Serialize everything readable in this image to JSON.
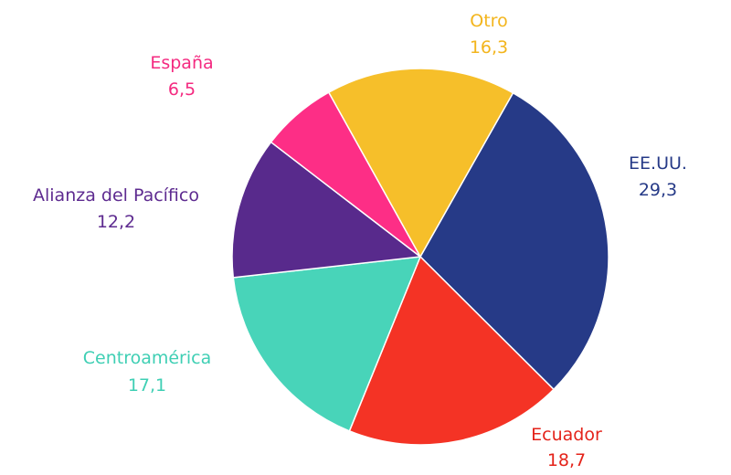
{
  "chart_data": {
    "type": "pie",
    "slices": [
      {
        "label": "EE.UU.",
        "value_label": "29,3",
        "value": 29.3,
        "color": "#263a87"
      },
      {
        "label": "Ecuador",
        "value_label": "18,7",
        "value": 18.7,
        "color": "#f43325"
      },
      {
        "label": "Centroamérica",
        "value_label": "17,1",
        "value": 17.1,
        "color": "#48d4b9"
      },
      {
        "label": "Alianza del Pacífico",
        "value_label": "12,2",
        "value": 12.2,
        "color": "#582a8c"
      },
      {
        "label": "España",
        "value_label": "6,5",
        "value": 6.5,
        "color": "#fd2e86"
      },
      {
        "label": "Otro",
        "value_label": "16,3",
        "value": 16.3,
        "color": "#f6bf2a"
      }
    ]
  }
}
